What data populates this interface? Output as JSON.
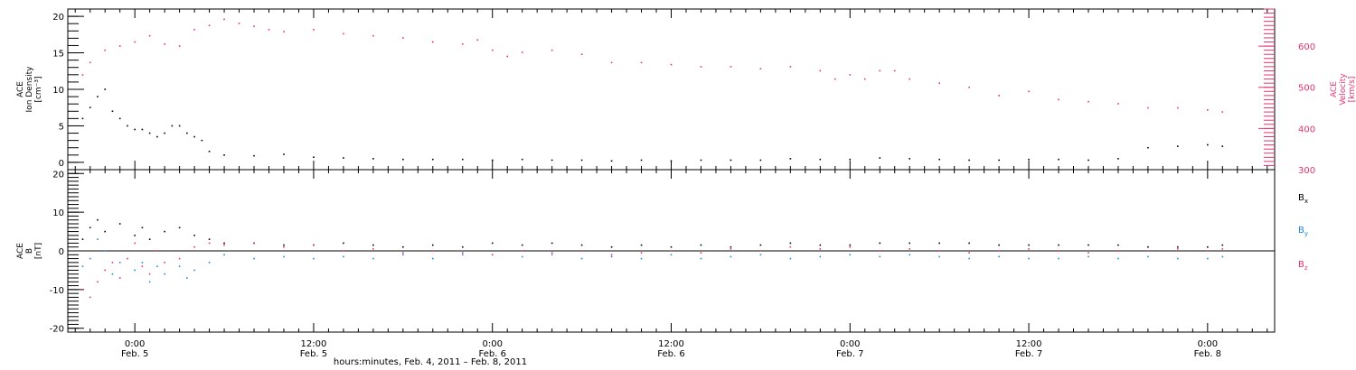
{
  "chart_data": [
    {
      "type": "scatter",
      "panel": "top",
      "left_axis": {
        "label_lines": [
          "ACE",
          "Ion Density",
          "[cm⁻³]"
        ],
        "ylim": [
          -1,
          21
        ],
        "ticks": [
          "0",
          "5",
          "10",
          "15",
          "20"
        ],
        "color": "#000000"
      },
      "right_axis": {
        "label_lines": [
          "ACE",
          "Velocity",
          "[km/s]"
        ],
        "ylim": [
          300,
          690
        ],
        "ticks": [
          "300",
          "400",
          "500",
          "600"
        ],
        "color": "#e8336a"
      },
      "series": [
        {
          "axis": "left",
          "color": "#000000",
          "points": [
            [
              -3.5,
              6
            ],
            [
              -3,
              7.5
            ],
            [
              -2.5,
              9
            ],
            [
              -2,
              10
            ],
            [
              -1.5,
              7
            ],
            [
              -1,
              6
            ],
            [
              -0.5,
              5
            ],
            [
              0,
              4.5
            ],
            [
              0.5,
              4.5
            ],
            [
              1,
              4
            ],
            [
              1.5,
              3.5
            ],
            [
              2,
              4
            ],
            [
              2.5,
              5
            ],
            [
              3,
              5
            ],
            [
              3.5,
              4
            ],
            [
              4,
              3.5
            ],
            [
              4.5,
              3
            ],
            [
              5,
              1.5
            ],
            [
              6,
              1
            ],
            [
              8,
              0.9
            ],
            [
              10,
              1.1
            ],
            [
              12,
              0.7
            ],
            [
              14,
              0.6
            ],
            [
              16,
              0.5
            ],
            [
              18,
              0.4
            ],
            [
              20,
              0.4
            ],
            [
              22,
              0.4
            ],
            [
              24,
              0.3
            ],
            [
              26,
              0.4
            ],
            [
              28,
              0.3
            ],
            [
              30,
              0.3
            ],
            [
              32,
              0.2
            ],
            [
              34,
              0.3
            ],
            [
              36,
              0.2
            ],
            [
              38,
              0.3
            ],
            [
              40,
              0.3
            ],
            [
              42,
              0.3
            ],
            [
              44,
              0.5
            ],
            [
              46,
              0.4
            ],
            [
              48,
              0.4
            ],
            [
              50,
              0.6
            ],
            [
              52,
              0.5
            ],
            [
              54,
              0.4
            ],
            [
              56,
              0.3
            ],
            [
              58,
              0.3
            ],
            [
              60,
              0.4
            ],
            [
              62,
              0.4
            ],
            [
              64,
              0.3
            ],
            [
              66,
              0.5
            ],
            [
              68,
              2
            ],
            [
              70,
              2.2
            ],
            [
              72,
              2.4
            ],
            [
              73,
              2.2
            ]
          ]
        },
        {
          "axis": "right",
          "color": "#e8336a",
          "points": [
            [
              -3.5,
              530
            ],
            [
              -3,
              560
            ],
            [
              -2,
              590
            ],
            [
              -1,
              600
            ],
            [
              0,
              610
            ],
            [
              1,
              625
            ],
            [
              2,
              605
            ],
            [
              3,
              600
            ],
            [
              4,
              640
            ],
            [
              5,
              650
            ],
            [
              6,
              665
            ],
            [
              7,
              655
            ],
            [
              8,
              648
            ],
            [
              9,
              640
            ],
            [
              10,
              635
            ],
            [
              12,
              640
            ],
            [
              14,
              630
            ],
            [
              16,
              625
            ],
            [
              18,
              620
            ],
            [
              20,
              610
            ],
            [
              22,
              605
            ],
            [
              23,
              615
            ],
            [
              24,
              590
            ],
            [
              25,
              575
            ],
            [
              26,
              585
            ],
            [
              28,
              590
            ],
            [
              30,
              580
            ],
            [
              32,
              560
            ],
            [
              34,
              560
            ],
            [
              36,
              555
            ],
            [
              38,
              550
            ],
            [
              40,
              550
            ],
            [
              42,
              545
            ],
            [
              44,
              550
            ],
            [
              46,
              540
            ],
            [
              47,
              520
            ],
            [
              48,
              530
            ],
            [
              49,
              520
            ],
            [
              50,
              540
            ],
            [
              51,
              540
            ],
            [
              52,
              520
            ],
            [
              54,
              510
            ],
            [
              56,
              500
            ],
            [
              58,
              480
            ],
            [
              60,
              490
            ],
            [
              62,
              470
            ],
            [
              64,
              465
            ],
            [
              66,
              460
            ],
            [
              68,
              450
            ],
            [
              70,
              450
            ],
            [
              72,
              445
            ],
            [
              73,
              440
            ]
          ]
        }
      ]
    },
    {
      "type": "scatter",
      "panel": "bottom",
      "left_axis": {
        "label_lines": [
          "ACE",
          "B",
          "[nT]"
        ],
        "ylim": [
          -21,
          21
        ],
        "ticks": [
          "-20",
          "-10",
          "0",
          "10",
          "20"
        ],
        "color": "#000000"
      },
      "legend": {
        "placement": "right",
        "entries": [
          {
            "name": "B",
            "sub": "x",
            "color": "#000000"
          },
          {
            "name": "B",
            "sub": "y",
            "color": "#1e88e5"
          },
          {
            "name": "B",
            "sub": "z",
            "color": "#e8336a"
          }
        ]
      },
      "series": [
        {
          "name": "Bx",
          "color": "#000000",
          "points": [
            [
              -3.5,
              3
            ],
            [
              -3,
              6
            ],
            [
              -2.5,
              8
            ],
            [
              -2,
              5
            ],
            [
              -1,
              7
            ],
            [
              0,
              4
            ],
            [
              0.5,
              6
            ],
            [
              1,
              3
            ],
            [
              2,
              5
            ],
            [
              3,
              6
            ],
            [
              4,
              4
            ],
            [
              5,
              3
            ],
            [
              6,
              2
            ],
            [
              8,
              2
            ],
            [
              10,
              1.5
            ],
            [
              12,
              1.5
            ],
            [
              14,
              2
            ],
            [
              16,
              1.5
            ],
            [
              18,
              1
            ],
            [
              20,
              1.5
            ],
            [
              22,
              1
            ],
            [
              24,
              2
            ],
            [
              26,
              1.5
            ],
            [
              28,
              2
            ],
            [
              30,
              1.5
            ],
            [
              32,
              1
            ],
            [
              34,
              1.5
            ],
            [
              36,
              1
            ],
            [
              38,
              1.5
            ],
            [
              40,
              1
            ],
            [
              42,
              1.5
            ],
            [
              44,
              2
            ],
            [
              46,
              1.5
            ],
            [
              48,
              1.5
            ],
            [
              50,
              2
            ],
            [
              52,
              2
            ],
            [
              54,
              2
            ],
            [
              56,
              2
            ],
            [
              58,
              1.5
            ],
            [
              60,
              1.5
            ],
            [
              62,
              1.5
            ],
            [
              64,
              1.5
            ],
            [
              66,
              1.5
            ],
            [
              68,
              1
            ],
            [
              70,
              1
            ],
            [
              72,
              1
            ],
            [
              73,
              1.5
            ]
          ]
        },
        {
          "name": "By",
          "color": "#1e88e5",
          "points": [
            [
              -3.5,
              -4
            ],
            [
              -3,
              -2
            ],
            [
              -2.5,
              3
            ],
            [
              -2,
              0
            ],
            [
              -1.5,
              -6
            ],
            [
              -1,
              -3
            ],
            [
              0,
              -5
            ],
            [
              0.5,
              -3
            ],
            [
              1,
              -8
            ],
            [
              1.5,
              -4
            ],
            [
              2,
              -6
            ],
            [
              3,
              -4
            ],
            [
              3.5,
              -7
            ],
            [
              4,
              -5
            ],
            [
              5,
              -3
            ],
            [
              6,
              -1
            ],
            [
              8,
              -2
            ],
            [
              10,
              -1.5
            ],
            [
              12,
              -2
            ],
            [
              14,
              -1.5
            ],
            [
              16,
              -2
            ],
            [
              18,
              -1
            ],
            [
              20,
              -2
            ],
            [
              22,
              -1
            ],
            [
              24,
              -1
            ],
            [
              26,
              -1.5
            ],
            [
              28,
              -1
            ],
            [
              30,
              -2
            ],
            [
              32,
              -1.5
            ],
            [
              34,
              -2
            ],
            [
              36,
              -1
            ],
            [
              38,
              -2
            ],
            [
              40,
              -1.5
            ],
            [
              42,
              -1
            ],
            [
              44,
              -2
            ],
            [
              46,
              -1.5
            ],
            [
              48,
              -1
            ],
            [
              50,
              -1.5
            ],
            [
              52,
              -1
            ],
            [
              54,
              -1.5
            ],
            [
              56,
              -2
            ],
            [
              58,
              -1.5
            ],
            [
              60,
              -2
            ],
            [
              62,
              -2
            ],
            [
              64,
              -1.5
            ],
            [
              66,
              -2
            ],
            [
              68,
              -1.5
            ],
            [
              70,
              -2
            ],
            [
              72,
              -2
            ],
            [
              73,
              -1.5
            ]
          ]
        },
        {
          "name": "Bz",
          "color": "#e8336a",
          "points": [
            [
              -3.5,
              -10
            ],
            [
              -3,
              -12
            ],
            [
              -2.5,
              -8
            ],
            [
              -2,
              -5
            ],
            [
              -1.5,
              -3
            ],
            [
              -1,
              -7
            ],
            [
              -0.5,
              -2
            ],
            [
              0,
              2
            ],
            [
              0.5,
              -4
            ],
            [
              1,
              -6
            ],
            [
              1.5,
              0
            ],
            [
              2,
              -3
            ],
            [
              3,
              -2
            ],
            [
              4,
              1
            ],
            [
              5,
              2
            ],
            [
              6,
              1.5
            ],
            [
              8,
              2
            ],
            [
              10,
              1
            ],
            [
              12,
              1.5
            ],
            [
              14,
              0
            ],
            [
              16,
              0.5
            ],
            [
              18,
              -0.5
            ],
            [
              20,
              0
            ],
            [
              22,
              -0.5
            ],
            [
              24,
              -1
            ],
            [
              26,
              0
            ],
            [
              28,
              -0.5
            ],
            [
              30,
              0
            ],
            [
              32,
              -1
            ],
            [
              34,
              -0.5
            ],
            [
              36,
              0
            ],
            [
              38,
              -0.5
            ],
            [
              40,
              0.5
            ],
            [
              42,
              0
            ],
            [
              44,
              1
            ],
            [
              46,
              0.5
            ],
            [
              48,
              1
            ],
            [
              50,
              0
            ],
            [
              52,
              0.5
            ],
            [
              54,
              0
            ],
            [
              56,
              -0.5
            ],
            [
              58,
              0
            ],
            [
              60,
              0.5
            ],
            [
              62,
              0
            ],
            [
              64,
              -0.5
            ],
            [
              66,
              0
            ],
            [
              68,
              0
            ],
            [
              70,
              0.5
            ],
            [
              72,
              0
            ],
            [
              73,
              0.5
            ]
          ]
        }
      ]
    }
  ],
  "x_axis": {
    "xlim": [
      -4.5,
      76.5
    ],
    "ticks": [
      {
        "t": 0,
        "time": "0:00",
        "date": "Feb. 5"
      },
      {
        "t": 12,
        "time": "12:00",
        "date": "Feb. 5"
      },
      {
        "t": 24,
        "time": "0:00",
        "date": "Feb. 6"
      },
      {
        "t": 36,
        "time": "12:00",
        "date": "Feb. 6"
      },
      {
        "t": 48,
        "time": "0:00",
        "date": "Feb. 7"
      },
      {
        "t": 60,
        "time": "12:00",
        "date": "Feb. 7"
      },
      {
        "t": 72,
        "time": "0:00",
        "date": "Feb. 8"
      }
    ],
    "title": "hours:minutes, Feb.  4, 2011 – Feb.  8, 2011"
  },
  "colors": {
    "black": "#000000",
    "pink": "#e8336a",
    "blue": "#1e88e5"
  }
}
